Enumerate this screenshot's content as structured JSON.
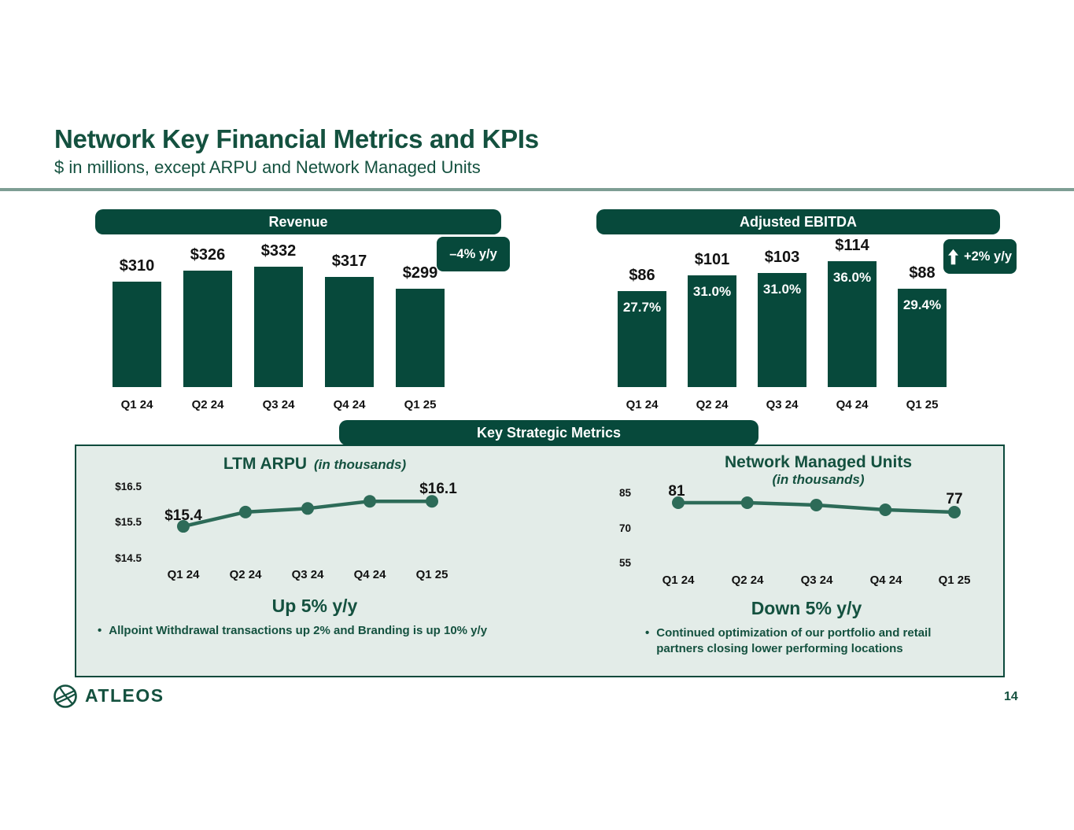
{
  "header": {
    "title": "Network Key Financial Metrics and KPIs",
    "subtitle": "$ in millions, except ARPU and Network Managed Units"
  },
  "section_header": "Key Strategic Metrics",
  "colors": {
    "brand_green": "#07493B",
    "panel_background": "#E3ECE8",
    "divider": "#7E9E94",
    "trend_line_green": "#2D6B58",
    "label_ink": "#121212",
    "white": "#FFFFFF"
  },
  "chart_data": [
    {
      "type": "bar",
      "title": "Revenue",
      "badge": "–4% y/y",
      "categories": [
        "Q1 24",
        "Q2 24",
        "Q3 24",
        "Q4 24",
        "Q1 25"
      ],
      "values": [
        310,
        326,
        332,
        317,
        299
      ],
      "bar_labels": [
        "$310",
        "$326",
        "$332",
        "$317",
        "$299"
      ],
      "unit": "$ in millions",
      "grid": false
    },
    {
      "type": "bar",
      "title": "Adjusted EBITDA",
      "badge": "+2% y/y",
      "badge_icon": "up-arrow-icon",
      "categories": [
        "Q1 24",
        "Q2 24",
        "Q3 24",
        "Q4 24",
        "Q1 25"
      ],
      "values": [
        86,
        101,
        103,
        114,
        88
      ],
      "bar_labels": [
        "$86",
        "$101",
        "$103",
        "$114",
        "$88"
      ],
      "inner_labels": [
        "27.7%",
        "31.0%",
        "31.0%",
        "36.0%",
        "29.4%"
      ],
      "unit": "$ in millions",
      "grid": false
    },
    {
      "type": "line",
      "title": "LTM ARPU",
      "subtitle": "(in thousands)",
      "categories": [
        "Q1 24",
        "Q2 24",
        "Q3 24",
        "Q4 24",
        "Q1 25"
      ],
      "values": [
        15.4,
        15.8,
        15.9,
        16.1,
        16.1
      ],
      "first_point_label": "$15.4",
      "last_point_label": "$16.1",
      "yticks": [
        "$16.5",
        "$15.5",
        "$14.5"
      ],
      "ylim": [
        14.5,
        16.5
      ],
      "grid": false,
      "callout": "Up 5% y/y",
      "bullets": [
        "Allpoint Withdrawal transactions up 2% and Branding is up 10% y/y"
      ]
    },
    {
      "type": "line",
      "title": "Network Managed Units",
      "subtitle": "(in thousands)",
      "categories": [
        "Q1 24",
        "Q2 24",
        "Q3 24",
        "Q4 24",
        "Q1 25"
      ],
      "values": [
        81,
        81,
        80,
        78,
        77
      ],
      "first_point_label": "81",
      "last_point_label": "77",
      "yticks": [
        "85",
        "70",
        "55"
      ],
      "ylim": [
        55,
        85
      ],
      "grid": false,
      "callout": "Down 5% y/y",
      "bullets": [
        "Continued optimization of our portfolio and retail partners closing lower performing locations"
      ]
    }
  ],
  "footer": {
    "brand": "ATLEOS",
    "page_number": "14"
  }
}
